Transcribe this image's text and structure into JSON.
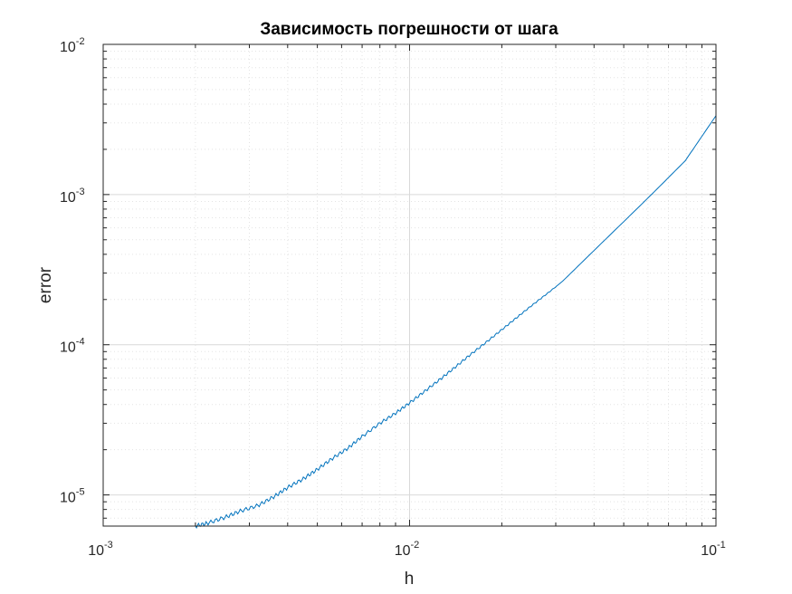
{
  "chart_data": {
    "type": "line",
    "title": "Зависимость погрешности от шага",
    "xlabel": "h",
    "ylabel": "error",
    "xscale": "log",
    "yscale": "log",
    "xlim": [
      0.001,
      0.1
    ],
    "ylim": [
      6.2e-06,
      0.01
    ],
    "grid": true,
    "minor_grid": true,
    "x_ticks": [
      {
        "value": 0.001,
        "base": "10",
        "exp": "-3"
      },
      {
        "value": 0.01,
        "base": "10",
        "exp": "-2"
      },
      {
        "value": 0.1,
        "base": "10",
        "exp": "-1"
      }
    ],
    "y_ticks": [
      {
        "value": 1e-05,
        "base": "10",
        "exp": "-5"
      },
      {
        "value": 0.0001,
        "base": "10",
        "exp": "-4"
      },
      {
        "value": 0.001,
        "base": "10",
        "exp": "-3"
      },
      {
        "value": 0.01,
        "base": "10",
        "exp": "-2"
      }
    ],
    "series": [
      {
        "color": "#0072BD",
        "x": [
          0.002,
          0.0022,
          0.0025,
          0.0028,
          0.0032,
          0.0036,
          0.004,
          0.0045,
          0.005,
          0.0056,
          0.0063,
          0.007,
          0.008,
          0.009,
          0.01,
          0.0112,
          0.0126,
          0.0141,
          0.0158,
          0.0178,
          0.02,
          0.0224,
          0.0251,
          0.0282,
          0.0316,
          0.0398,
          0.05,
          0.0631,
          0.0794,
          0.1
        ],
        "y": [
          6.2e-06,
          6.5e-06,
          7.1e-06,
          7.8e-06,
          8.5e-06,
          9.7e-06,
          1.12e-05,
          1.28e-05,
          1.48e-05,
          1.75e-05,
          2.05e-05,
          2.45e-05,
          3e-05,
          3.5e-05,
          4.1e-05,
          4.9e-05,
          5.9e-05,
          7.1e-05,
          8.6e-05,
          0.000104,
          0.000126,
          0.000152,
          0.000183,
          0.00022,
          0.000265,
          0.00042,
          0.00066,
          0.00105,
          0.00168,
          0.00335
        ]
      }
    ]
  }
}
